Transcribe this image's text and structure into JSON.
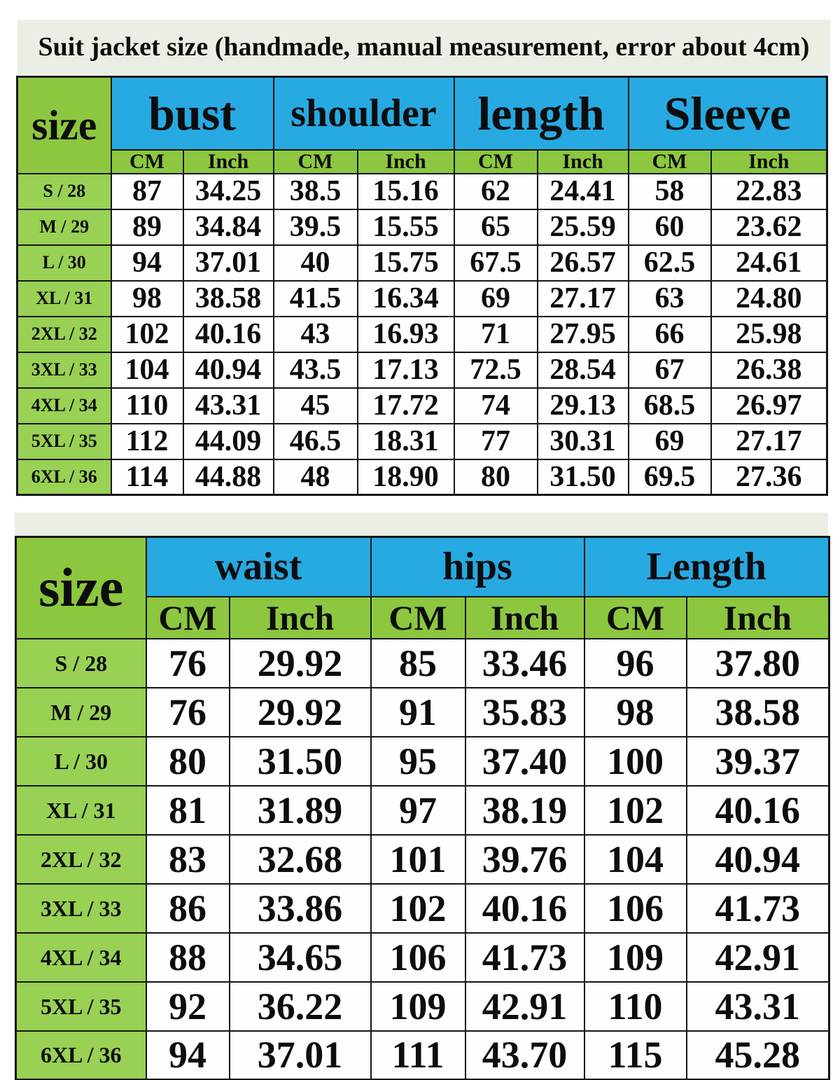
{
  "colors": {
    "green_header": "#8dc73f",
    "green_row": "#98d154",
    "blue_header": "#27a9e1",
    "panel": "#e9efe4",
    "border": "#161616",
    "text": "#0d0d0d"
  },
  "chart_data": [
    {
      "type": "table",
      "title": "Suit jacket size (handmade, manual measurement, error about 4cm)",
      "corner_label": "size",
      "column_groups": [
        "bust",
        "shoulder",
        "length",
        "Sleeve"
      ],
      "subcolumns": [
        "CM",
        "Inch"
      ],
      "rows": [
        {
          "label": "S / 28",
          "values": [
            "87",
            "34.25",
            "38.5",
            "15.16",
            "62",
            "24.41",
            "58",
            "22.83"
          ]
        },
        {
          "label": "M / 29",
          "values": [
            "89",
            "34.84",
            "39.5",
            "15.55",
            "65",
            "25.59",
            "60",
            "23.62"
          ]
        },
        {
          "label": "L / 30",
          "values": [
            "94",
            "37.01",
            "40",
            "15.75",
            "67.5",
            "26.57",
            "62.5",
            "24.61"
          ]
        },
        {
          "label": "XL / 31",
          "values": [
            "98",
            "38.58",
            "41.5",
            "16.34",
            "69",
            "27.17",
            "63",
            "24.80"
          ]
        },
        {
          "label": "2XL / 32",
          "values": [
            "102",
            "40.16",
            "43",
            "16.93",
            "71",
            "27.95",
            "66",
            "25.98"
          ]
        },
        {
          "label": "3XL / 33",
          "values": [
            "104",
            "40.94",
            "43.5",
            "17.13",
            "72.5",
            "28.54",
            "67",
            "26.38"
          ]
        },
        {
          "label": "4XL / 34",
          "values": [
            "110",
            "43.31",
            "45",
            "17.72",
            "74",
            "29.13",
            "68.5",
            "26.97"
          ]
        },
        {
          "label": "5XL / 35",
          "values": [
            "112",
            "44.09",
            "46.5",
            "18.31",
            "77",
            "30.31",
            "69",
            "27.17"
          ]
        },
        {
          "label": "6XL / 36",
          "values": [
            "114",
            "44.88",
            "48",
            "18.90",
            "80",
            "31.50",
            "69.5",
            "27.36"
          ]
        }
      ]
    },
    {
      "type": "table",
      "corner_label": "size",
      "column_groups": [
        "waist",
        "hips",
        "Length"
      ],
      "subcolumns": [
        "CM",
        "Inch"
      ],
      "rows": [
        {
          "label": "S / 28",
          "values": [
            "76",
            "29.92",
            "85",
            "33.46",
            "96",
            "37.80"
          ]
        },
        {
          "label": "M / 29",
          "values": [
            "76",
            "29.92",
            "91",
            "35.83",
            "98",
            "38.58"
          ]
        },
        {
          "label": "L / 30",
          "values": [
            "80",
            "31.50",
            "95",
            "37.40",
            "100",
            "39.37"
          ]
        },
        {
          "label": "XL / 31",
          "values": [
            "81",
            "31.89",
            "97",
            "38.19",
            "102",
            "40.16"
          ]
        },
        {
          "label": "2XL / 32",
          "values": [
            "83",
            "32.68",
            "101",
            "39.76",
            "104",
            "40.94"
          ]
        },
        {
          "label": "3XL / 33",
          "values": [
            "86",
            "33.86",
            "102",
            "40.16",
            "106",
            "41.73"
          ]
        },
        {
          "label": "4XL / 34",
          "values": [
            "88",
            "34.65",
            "106",
            "41.73",
            "109",
            "42.91"
          ]
        },
        {
          "label": "5XL / 35",
          "values": [
            "92",
            "36.22",
            "109",
            "42.91",
            "110",
            "43.31"
          ]
        },
        {
          "label": "6XL / 36",
          "values": [
            "94",
            "37.01",
            "111",
            "43.70",
            "115",
            "45.28"
          ]
        }
      ]
    }
  ]
}
